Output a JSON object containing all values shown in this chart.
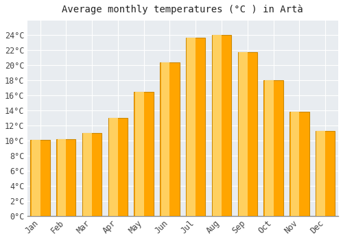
{
  "title": "Average monthly temperatures (°C ) in Artà",
  "months": [
    "Jan",
    "Feb",
    "Mar",
    "Apr",
    "May",
    "Jun",
    "Jul",
    "Aug",
    "Sep",
    "Oct",
    "Nov",
    "Dec"
  ],
  "values": [
    10.1,
    10.2,
    11.0,
    13.0,
    16.5,
    20.4,
    23.7,
    24.0,
    21.8,
    18.0,
    13.8,
    11.3
  ],
  "bar_color": "#FFA500",
  "bar_edge_color": "#CC8800",
  "background_color": "#FFFFFF",
  "plot_bg_color": "#E8ECF0",
  "grid_color": "#FFFFFF",
  "text_color": "#444444",
  "title_color": "#222222",
  "ylim": [
    0,
    26
  ],
  "yticks": [
    0,
    2,
    4,
    6,
    8,
    10,
    12,
    14,
    16,
    18,
    20,
    22,
    24
  ],
  "title_fontsize": 10,
  "tick_fontsize": 8.5
}
